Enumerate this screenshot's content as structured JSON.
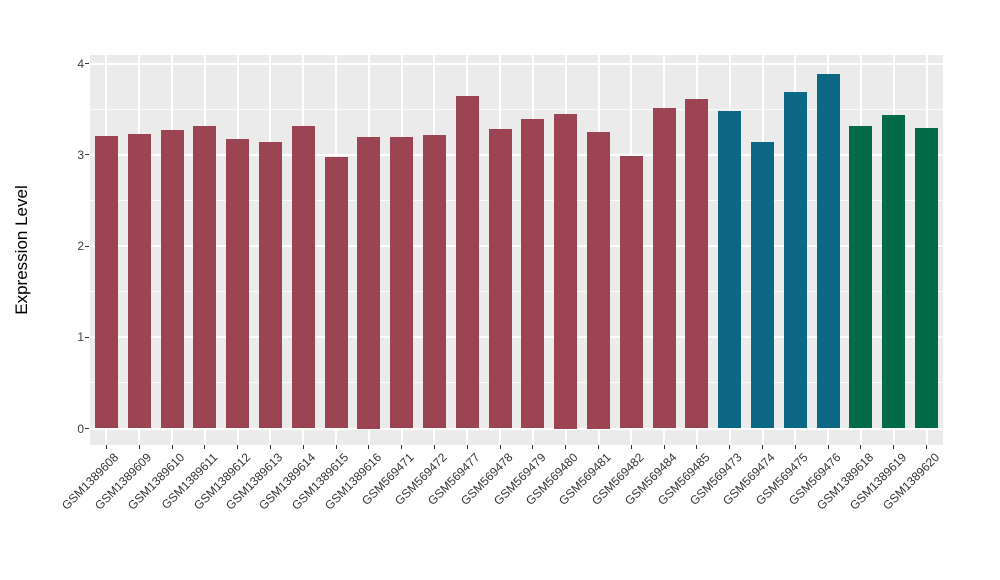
{
  "theme": {
    "figure_background": "#FFFFFF",
    "panel_background": "#EBEBEB",
    "gridline_color": "#FFFFFF",
    "tick_color": "#333333",
    "axis_text_color": "#404040",
    "axis_title_color": "#000000"
  },
  "chart_data": {
    "type": "bar",
    "ylabel": "Expression Level",
    "xlabel": "",
    "ylim": [
      0,
      4
    ],
    "yticks": [
      0,
      1,
      2,
      3,
      4
    ],
    "yticks_minor": [
      0.5,
      1.5,
      2.5,
      3.5
    ],
    "grid": "on",
    "legend": "none",
    "x_tick_rotation_deg": 45,
    "categories": [
      "GSM1389608",
      "GSM1389609",
      "GSM1389610",
      "GSM1389611",
      "GSM1389612",
      "GSM1389613",
      "GSM1389614",
      "GSM1389615",
      "GSM1389616",
      "GSM569471",
      "GSM569472",
      "GSM569477",
      "GSM569478",
      "GSM569479",
      "GSM569480",
      "GSM569481",
      "GSM569482",
      "GSM569484",
      "GSM569485",
      "GSM569473",
      "GSM569474",
      "GSM569475",
      "GSM569476",
      "GSM1389618",
      "GSM1389619",
      "GSM1389620"
    ],
    "values": [
      3.21,
      3.23,
      3.27,
      3.32,
      3.17,
      3.14,
      3.31,
      2.97,
      3.2,
      3.19,
      3.22,
      3.64,
      3.28,
      3.39,
      3.45,
      3.25,
      2.99,
      3.51,
      3.61,
      3.48,
      3.14,
      3.69,
      3.89,
      3.32,
      3.44,
      3.29
    ],
    "palette": {
      "maroon": "#9C4453",
      "teal": "#0D6886",
      "green": "#006B46"
    },
    "bar_colors": [
      "#9C4453",
      "#9C4453",
      "#9C4453",
      "#9C4453",
      "#9C4453",
      "#9C4453",
      "#9C4453",
      "#9C4453",
      "#9C4453",
      "#9C4453",
      "#9C4453",
      "#9C4453",
      "#9C4453",
      "#9C4453",
      "#9C4453",
      "#9C4453",
      "#9C4453",
      "#9C4453",
      "#9C4453",
      "#0D6886",
      "#0D6886",
      "#0D6886",
      "#0D6886",
      "#006B46",
      "#006B46",
      "#006B46"
    ]
  }
}
